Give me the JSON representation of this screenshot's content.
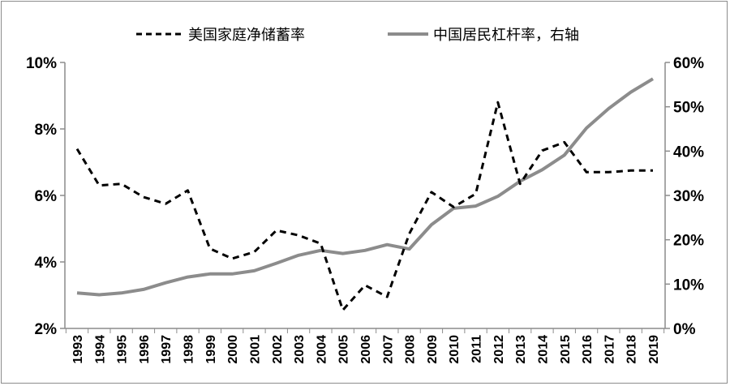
{
  "chart_data": {
    "type": "line",
    "categories": [
      "1993",
      "1994",
      "1995",
      "1996",
      "1997",
      "1998",
      "1999",
      "2000",
      "2001",
      "2002",
      "2003",
      "2004",
      "2005",
      "2006",
      "2007",
      "2008",
      "2009",
      "2010",
      "2011",
      "2012",
      "2013",
      "2014",
      "2015",
      "2016",
      "2017",
      "2018",
      "2019"
    ],
    "series": [
      {
        "name": "美国家庭净储蓄率",
        "axis": "left",
        "style": "dashed",
        "color": "#000000",
        "values": [
          7.4,
          6.3,
          6.35,
          5.95,
          5.75,
          6.15,
          4.4,
          4.1,
          4.3,
          4.95,
          4.8,
          4.55,
          2.55,
          3.3,
          2.95,
          4.85,
          6.1,
          5.65,
          6.05,
          8.8,
          6.35,
          7.35,
          7.6,
          6.7,
          6.7,
          6.75,
          6.75
        ]
      },
      {
        "name": "中国居民杠杆率，右轴",
        "axis": "right",
        "style": "solid",
        "color": "#8c8c8c",
        "values": [
          8.0,
          7.6,
          8.0,
          8.8,
          10.3,
          11.6,
          12.3,
          12.3,
          13.0,
          14.7,
          16.5,
          17.6,
          16.9,
          17.6,
          18.9,
          17.9,
          23.4,
          27.1,
          27.6,
          29.8,
          33.2,
          35.8,
          39.1,
          45.2,
          49.6,
          53.3,
          56.3
        ]
      }
    ],
    "yAxisLeft": {
      "min": 2,
      "max": 10,
      "ticks": [
        2,
        4,
        6,
        8,
        10
      ],
      "tick_labels": [
        "2%",
        "4%",
        "6%",
        "8%",
        "10%"
      ]
    },
    "yAxisRight": {
      "min": 0,
      "max": 60,
      "ticks": [
        0,
        10,
        20,
        30,
        40,
        50,
        60
      ],
      "tick_labels": [
        "0%",
        "10%",
        "20%",
        "30%",
        "40%",
        "50%",
        "60%"
      ]
    },
    "legend": "top-center",
    "grid": false
  }
}
